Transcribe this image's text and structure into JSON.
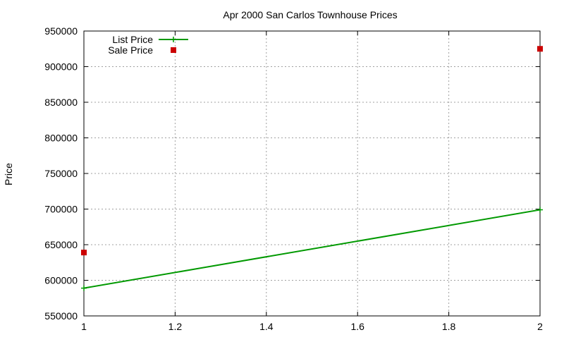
{
  "chart_data": {
    "type": "line",
    "title": "Apr 2000 San Carlos Townhouse Prices",
    "xlabel": "",
    "ylabel": "Price",
    "xlim": [
      1,
      2
    ],
    "ylim": [
      550000,
      950000
    ],
    "x_ticks": [
      1,
      1.2,
      1.4,
      1.6,
      1.8,
      2
    ],
    "x_tick_labels": [
      "1",
      "1.2",
      "1.4",
      "1.6",
      "1.8",
      "2"
    ],
    "y_ticks": [
      550000,
      600000,
      650000,
      700000,
      750000,
      800000,
      850000,
      900000,
      950000
    ],
    "y_tick_labels": [
      "550000",
      "600000",
      "650000",
      "700000",
      "750000",
      "800000",
      "850000",
      "900000",
      "950000"
    ],
    "grid": true,
    "legend_position": "top-left",
    "series": [
      {
        "name": "List Price",
        "type": "line",
        "color": "#009900",
        "marker": "plus",
        "points": [
          {
            "x": 1,
            "y": 589000
          },
          {
            "x": 2,
            "y": 699000
          }
        ]
      },
      {
        "name": "Sale Price",
        "type": "scatter",
        "color": "#cc0000",
        "marker": "square",
        "points": [
          {
            "x": 1,
            "y": 639000
          },
          {
            "x": 2,
            "y": 925000
          }
        ]
      }
    ]
  }
}
